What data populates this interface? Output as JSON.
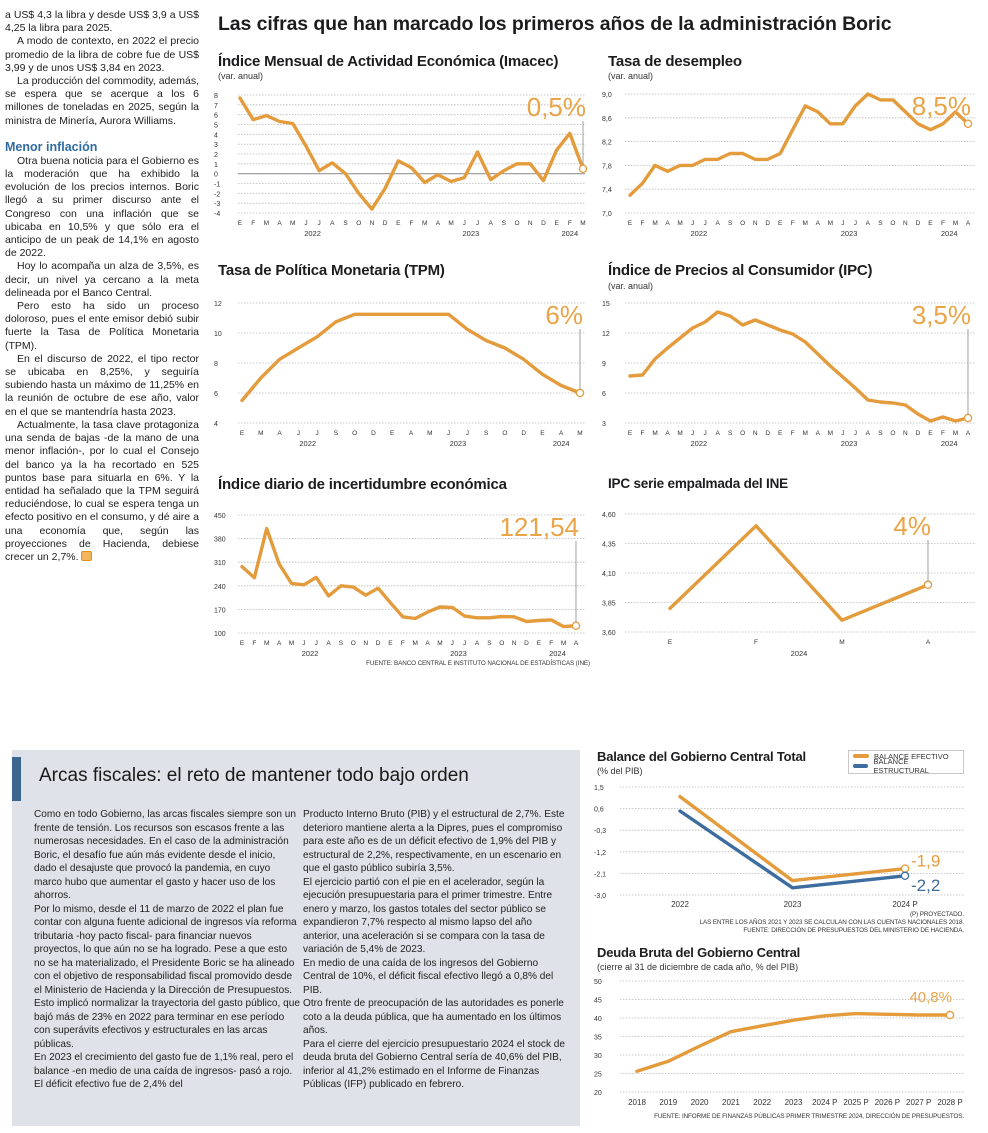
{
  "article": {
    "paragraphs": [
      {
        "type": "p",
        "indent": false,
        "text": "a US$ 4,3 la libra y desde US$ 3,9 a US$ 4,25 la libra para 2025."
      },
      {
        "type": "p",
        "indent": true,
        "text": "A modo de contexto, en 2022 el precio promedio de la libra de cobre fue de US$ 3,99 y de unos US$ 3,84 en 2023."
      },
      {
        "type": "p",
        "indent": true,
        "text": "La producción del commodity, además, se espera que se acerque a los 6 millones de toneladas en 2025, según la ministra de Minería, Aurora Williams."
      },
      {
        "type": "h",
        "text": "Menor inflación"
      },
      {
        "type": "p",
        "indent": true,
        "text": "Otra buena noticia para el Gobierno es la moderación que ha exhibido la evolución de los precios internos. Boric llegó a su primer discurso ante el Congreso con una inflación que se ubicaba en 10,5% y que sólo era el anticipo de un peak de 14,1% en agosto de 2022."
      },
      {
        "type": "p",
        "indent": true,
        "text": "Hoy lo acompaña un alza de 3,5%, es decir, un nivel ya cercano a la meta delineada por el Banco Central."
      },
      {
        "type": "p",
        "indent": true,
        "text": "Pero esto ha sido un proceso doloroso, pues el ente emisor debió subir fuerte la Tasa de Política Monetaria (TPM)."
      },
      {
        "type": "p",
        "indent": true,
        "text": "En el discurso de 2022, el tipo rector se ubicaba en 8,25%, y seguiría subiendo hasta un máximo de 11,25% en la reunión de octubre de ese año, valor en el que se mantendría hasta 2023."
      },
      {
        "type": "p",
        "indent": true,
        "text": "Actualmente, la tasa clave protagoniza una senda de bajas -de la mano de una menor inflación-, por lo cual el Consejo del banco ya la ha recortado en 525 puntos base para situarla en 6%. Y la entidad ha señalado que la TPM seguirá reduciéndose, lo cual se espera tenga un efecto positivo en el consumo, y dé aire a una economía que, según las proyecciones de Hacienda, debiese crecer un 2,7%."
      }
    ],
    "end_icon": "end-of-article-square-icon"
  },
  "main_title": "Las cifras que han marcado los primeros años de la administración Boric",
  "source_top": "FUENTE: BANCO CENTRAL E INSTITUTO NACIONAL DE ESTADÍSTICAS (INE)",
  "fiscal_box": {
    "title": "Arcas fiscales: el reto de mantener todo bajo orden",
    "col1": [
      "Como en todo Gobierno, las arcas fiscales siempre son un frente de tensión. Los recursos son escasos frente a las numerosas necesidades. En el caso de la administración Boric, el desafío fue aún más evidente desde el inicio, dado el desajuste que provocó la pandemia, en cuyo marco hubo que aumentar el gasto y hacer uso de los ahorros.",
      "Por lo mismo, desde el 11 de marzo de 2022 el plan fue contar con alguna fuente adicional de ingresos vía reforma tributaria -hoy pacto fiscal- para financiar nuevos proyectos, lo que aún no se ha logrado. Pese a que esto no se ha materializado, el Presidente Boric se ha alineado con el objetivo de responsabilidad fiscal promovido desde el Ministerio de Hacienda y la Dirección de Presupuestos. Esto implicó normalizar la trayectoria del gasto público, que bajó más de 23% en 2022 para terminar en ese período con superávits efectivos y estructurales en las arcas públicas.",
      "En 2023 el crecimiento del gasto fue de 1,1% real, pero el balance -en medio de una caída de ingresos- pasó a rojo. El déficit efectivo fue de 2,4% del"
    ],
    "col2": [
      "Producto Interno Bruto (PIB) y el estructural de 2,7%. Este deterioro mantiene alerta a la Dipres, pues el compromiso para este año es de un déficit efectivo de 1,9% del PIB y estructural de 2,2%, respectivamente, en un escenario en que el gasto público subiría 3,5%.",
      "El ejercicio partió con el pie en el acelerador, según la ejecución presupuestaria para el primer trimestre. Entre enero y marzo, los gastos totales del sector público se expandieron 7,7% respecto al mismo lapso del año anterior, una aceleración si se compara con la tasa de variación de 5,4% de 2023.",
      "En medio de una caída de los ingresos del Gobierno Central de 10%, el déficit fiscal efectivo llegó a 0,8% del PIB.",
      "Otro frente de preocupación de las autoridades es ponerle coto a la deuda pública, que ha aumentado en los últimos años.",
      "Para el cierre del ejercicio presupuestario 2024 el stock de deuda bruta del Gobierno Central sería de 40,6% del PIB, inferior al 41,2% estimado en el Informe de Finanzas Públicas (IFP) publicado en febrero."
    ]
  },
  "colors": {
    "orange": "#e39b3c",
    "orange_label": "#e9a448",
    "blue": "#3d6d9e",
    "grid": "#b9b9b9",
    "box_bg": "#dfe2e8",
    "box_bar": "#3c6590",
    "heading_blue": "#2f6ca3"
  },
  "chart_data": [
    {
      "id": "imacec",
      "type": "line",
      "title": "Índice Mensual de Actividad Económica (Imacec)",
      "subtitle": "(var. anual)",
      "ylim": [
        -4,
        8
      ],
      "y_ticks": [
        {
          "v": 8,
          "l": "8"
        },
        {
          "v": 7,
          "l": "7"
        },
        {
          "v": 6,
          "l": "6"
        },
        {
          "v": 5,
          "l": "5"
        },
        {
          "v": 4,
          "l": "4"
        },
        {
          "v": 3,
          "l": "3"
        },
        {
          "v": 2,
          "l": "2"
        },
        {
          "v": 1,
          "l": "1"
        },
        {
          "v": 0,
          "l": "0"
        },
        {
          "v": -1,
          "l": "-1"
        },
        {
          "v": -2,
          "l": "-2"
        },
        {
          "v": -3,
          "l": "-3"
        },
        {
          "v": -4,
          "l": "-4"
        }
      ],
      "zero_line": true,
      "x": [
        "E",
        "F",
        "M",
        "A",
        "M",
        "J",
        "J",
        "A",
        "S",
        "O",
        "N",
        "D",
        "E",
        "F",
        "M",
        "A",
        "M",
        "J",
        "J",
        "A",
        "S",
        "O",
        "N",
        "D",
        "E",
        "F",
        "M"
      ],
      "years": [
        {
          "label": "2022",
          "from": 0,
          "to": 11
        },
        {
          "label": "2023",
          "from": 12,
          "to": 23
        },
        {
          "label": "2024",
          "from": 24,
          "to": 26
        }
      ],
      "series": [
        {
          "values": [
            7.7,
            5.5,
            5.9,
            5.3,
            5.1,
            2.8,
            0.3,
            1.1,
            0.0,
            -2.0,
            -3.6,
            -1.5,
            1.3,
            0.6,
            -0.9,
            -0.1,
            -0.8,
            -0.4,
            2.2,
            -0.6,
            0.3,
            1.0,
            1.0,
            -0.7,
            2.4,
            4.1,
            0.5
          ],
          "color": "#e39b3c"
        }
      ],
      "callout": "0,5%",
      "grid": true
    },
    {
      "id": "desempleo",
      "type": "line",
      "title": "Tasa de desempleo",
      "subtitle": "(var. anual)",
      "ylim": [
        7.0,
        9.0
      ],
      "y_ticks": [
        {
          "v": 9.0,
          "l": "9,0"
        },
        {
          "v": 8.6,
          "l": "8,6"
        },
        {
          "v": 8.2,
          "l": "8,2"
        },
        {
          "v": 7.8,
          "l": "7,8"
        },
        {
          "v": 7.4,
          "l": "7,4"
        },
        {
          "v": 7.0,
          "l": "7,0"
        }
      ],
      "x": [
        "E",
        "F",
        "M",
        "A",
        "M",
        "J",
        "J",
        "A",
        "S",
        "O",
        "N",
        "D",
        "E",
        "F",
        "M",
        "A",
        "M",
        "J",
        "J",
        "A",
        "S",
        "O",
        "N",
        "D",
        "E",
        "F",
        "M",
        "A"
      ],
      "years": [
        {
          "label": "2022",
          "from": 0,
          "to": 11
        },
        {
          "label": "2023",
          "from": 12,
          "to": 23
        },
        {
          "label": "2024",
          "from": 24,
          "to": 27
        }
      ],
      "series": [
        {
          "values": [
            7.3,
            7.5,
            7.8,
            7.7,
            7.8,
            7.8,
            7.9,
            7.9,
            8.0,
            8.0,
            7.9,
            7.9,
            8.0,
            8.4,
            8.8,
            8.7,
            8.5,
            8.5,
            8.8,
            9.0,
            8.9,
            8.9,
            8.7,
            8.5,
            8.4,
            8.5,
            8.7,
            8.5
          ],
          "color": "#e39b3c"
        }
      ],
      "callout": "8,5%",
      "grid": true
    },
    {
      "id": "tpm",
      "type": "line",
      "title": "Tasa de Política Monetaria (TPM)",
      "subtitle": "",
      "ylim": [
        4,
        12
      ],
      "y_ticks": [
        {
          "v": 12,
          "l": "12"
        },
        {
          "v": 10,
          "l": "10"
        },
        {
          "v": 8,
          "l": "8"
        },
        {
          "v": 6,
          "l": "6"
        },
        {
          "v": 4,
          "l": "4"
        }
      ],
      "x": [
        "E",
        "M",
        "A",
        "J",
        "J",
        "S",
        "O",
        "D",
        "E",
        "A",
        "M",
        "J",
        "J",
        "S",
        "O",
        "D",
        "E",
        "A",
        "M"
      ],
      "years": [
        {
          "label": "2022",
          "from": 0,
          "to": 7
        },
        {
          "label": "2023",
          "from": 8,
          "to": 15
        },
        {
          "label": "2024",
          "from": 16,
          "to": 18
        }
      ],
      "series": [
        {
          "values": [
            5.5,
            7.0,
            8.25,
            9.0,
            9.75,
            10.75,
            11.25,
            11.25,
            11.25,
            11.25,
            11.25,
            11.25,
            10.25,
            9.5,
            9.0,
            8.25,
            7.25,
            6.5,
            6.0
          ],
          "color": "#e39b3c"
        }
      ],
      "callout": "6%",
      "grid": true
    },
    {
      "id": "ipc",
      "type": "line",
      "title": "Índice de Precios al Consumidor (IPC)",
      "subtitle": "(var. anual)",
      "ylim": [
        3,
        15
      ],
      "y_ticks": [
        {
          "v": 15,
          "l": "15"
        },
        {
          "v": 12,
          "l": "12"
        },
        {
          "v": 9,
          "l": "9"
        },
        {
          "v": 6,
          "l": "6"
        },
        {
          "v": 3,
          "l": "3"
        }
      ],
      "x": [
        "E",
        "F",
        "M",
        "A",
        "M",
        "J",
        "J",
        "A",
        "S",
        "O",
        "N",
        "D",
        "E",
        "F",
        "M",
        "A",
        "M",
        "J",
        "J",
        "A",
        "S",
        "O",
        "N",
        "D",
        "E",
        "F",
        "M",
        "A"
      ],
      "years": [
        {
          "label": "2022",
          "from": 0,
          "to": 11
        },
        {
          "label": "2023",
          "from": 12,
          "to": 23
        },
        {
          "label": "2024",
          "from": 24,
          "to": 27
        }
      ],
      "series": [
        {
          "values": [
            7.7,
            7.8,
            9.4,
            10.5,
            11.5,
            12.5,
            13.1,
            14.1,
            13.7,
            12.8,
            13.3,
            12.8,
            12.3,
            11.9,
            11.1,
            9.9,
            8.7,
            7.6,
            6.5,
            5.3,
            5.1,
            5.0,
            4.8,
            3.9,
            3.2,
            3.6,
            3.2,
            3.5
          ],
          "color": "#e39b3c"
        }
      ],
      "callout": "3,5%",
      "grid": true
    },
    {
      "id": "incertidumbre",
      "type": "line",
      "title": "Índice diario de incertidumbre económica",
      "subtitle": "",
      "ylim": [
        100,
        450
      ],
      "y_ticks": [
        {
          "v": 450,
          "l": "450"
        },
        {
          "v": 380,
          "l": "380"
        },
        {
          "v": 310,
          "l": "310"
        },
        {
          "v": 240,
          "l": "240"
        },
        {
          "v": 170,
          "l": "170"
        },
        {
          "v": 100,
          "l": "100"
        }
      ],
      "x": [
        "E",
        "F",
        "M",
        "A",
        "M",
        "J",
        "J",
        "A",
        "S",
        "O",
        "N",
        "D",
        "E",
        "F",
        "M",
        "A",
        "M",
        "J",
        "J",
        "A",
        "S",
        "O",
        "N",
        "D",
        "E",
        "F",
        "M",
        "A"
      ],
      "years": [
        {
          "label": "2022",
          "from": 0,
          "to": 11
        },
        {
          "label": "2023",
          "from": 12,
          "to": 23
        },
        {
          "label": "2024",
          "from": 24,
          "to": 27
        }
      ],
      "series": [
        {
          "values": [
            297,
            264,
            410,
            305,
            247,
            243,
            265,
            210,
            240,
            236,
            212,
            233,
            190,
            148,
            143,
            162,
            177,
            176,
            150,
            145,
            145,
            149,
            148,
            134,
            137,
            139,
            119,
            121.54
          ],
          "color": "#e39b3c"
        }
      ],
      "callout": "121,54",
      "grid": true
    },
    {
      "id": "ipc_empalmada",
      "type": "line",
      "title": "IPC serie empalmada del INE",
      "subtitle": "",
      "ylim": [
        3.6,
        4.6
      ],
      "y_ticks": [
        {
          "v": 4.6,
          "l": "4,60"
        },
        {
          "v": 4.35,
          "l": "4,35"
        },
        {
          "v": 4.1,
          "l": "4,10"
        },
        {
          "v": 3.85,
          "l": "3,85"
        },
        {
          "v": 3.6,
          "l": "3,60"
        }
      ],
      "x": [
        "E",
        "F",
        "M",
        "A"
      ],
      "years": [
        {
          "label": "2024",
          "from": 0,
          "to": 3
        }
      ],
      "series": [
        {
          "values": [
            3.8,
            4.5,
            3.7,
            4.0
          ],
          "color": "#e39b3c"
        }
      ],
      "callout": "4%",
      "grid": true
    },
    {
      "id": "balance",
      "type": "line",
      "title": "Balance del Gobierno Central Total",
      "subtitle": "(% del PIB)",
      "ylim": [
        -3.0,
        1.5
      ],
      "y_ticks": [
        {
          "v": 1.5,
          "l": "1,5"
        },
        {
          "v": 0.6,
          "l": "0,6"
        },
        {
          "v": -0.3,
          "l": "-0,3"
        },
        {
          "v": -1.2,
          "l": "-1,2"
        },
        {
          "v": -2.1,
          "l": "-2,1"
        },
        {
          "v": -3.0,
          "l": "-3,0"
        }
      ],
      "x": [
        "2022",
        "2023",
        "2024 P"
      ],
      "legend": {
        "placement": "top-right"
      },
      "series": [
        {
          "name": "BALANCE EFECTIVO",
          "values": [
            1.1,
            -2.4,
            -1.9
          ],
          "color": "#e39b3c",
          "end_label": "-1,9"
        },
        {
          "name": "BALANCE ESTRUCTURAL",
          "values": [
            0.5,
            -2.7,
            -2.2
          ],
          "color": "#3d6d9e",
          "end_label": "-2,2"
        }
      ],
      "notes": [
        "(P) PROYECTADO.",
        "LAS ENTRE LOS AÑOS 2021 Y 2023 SE CALCULAN  CON LAS CUENTAS NACIONALES 2018.",
        "FUENTE: DIRECCIÓN DE PRESUPUESTOS DEL MINISTERIO DE HACIENDA."
      ],
      "grid": true
    },
    {
      "id": "deuda",
      "type": "line",
      "title": "Deuda Bruta del Gobierno Central",
      "subtitle": "(cierre al 31 de diciembre de cada año, % del PIB)",
      "ylim": [
        20,
        50
      ],
      "y_ticks": [
        {
          "v": 50,
          "l": "50"
        },
        {
          "v": 45,
          "l": "45"
        },
        {
          "v": 40,
          "l": "40"
        },
        {
          "v": 35,
          "l": "35"
        },
        {
          "v": 30,
          "l": "30"
        },
        {
          "v": 25,
          "l": "25"
        },
        {
          "v": 20,
          "l": "20"
        }
      ],
      "x": [
        "2018",
        "2019",
        "2020",
        "2021",
        "2022",
        "2023",
        "2024 P",
        "2025 P",
        "2026 P",
        "2027 P",
        "2028 P"
      ],
      "series": [
        {
          "values": [
            25.6,
            28.3,
            32.4,
            36.3,
            37.9,
            39.4,
            40.6,
            41.2,
            41.0,
            40.8,
            40.8
          ],
          "color": "#e39b3c"
        }
      ],
      "callout": "40,8%",
      "source": "FUENTE: INFORME DE FINANZAS PÚBLICAS PRIMER TRIMESTRE 2024, DIRECCIÓN DE PRESUPUESTOS.",
      "grid": true
    }
  ]
}
